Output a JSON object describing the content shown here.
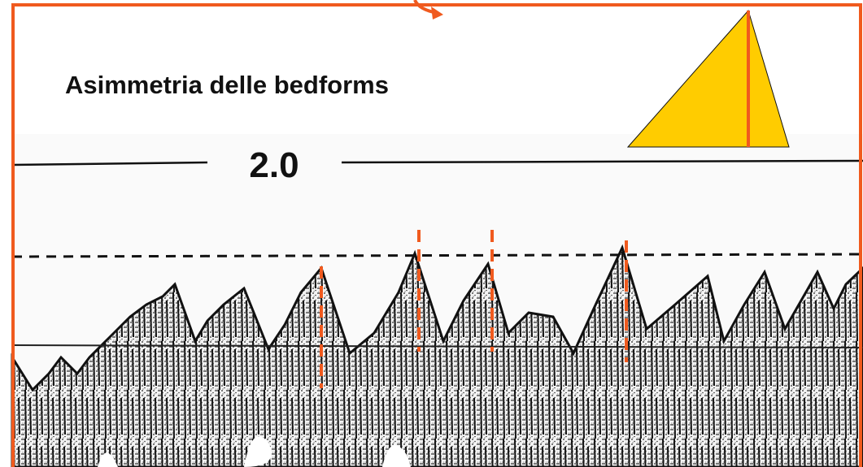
{
  "slide": {
    "title": "Asimmetria delle bedforms",
    "scale_label": "2.0"
  }
}
